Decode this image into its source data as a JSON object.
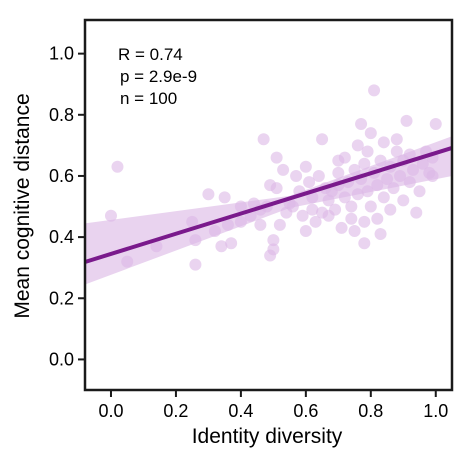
{
  "chart_data": {
    "type": "scatter",
    "xlabel": "Identity diversity",
    "ylabel": "Mean cognitive distance",
    "xlim": [
      -0.08,
      1.05
    ],
    "ylim": [
      -0.1,
      1.11
    ],
    "xticks": [
      0.0,
      0.2,
      0.4,
      0.6,
      0.8,
      1.0
    ],
    "yticks": [
      0.0,
      0.2,
      0.4,
      0.6,
      0.8,
      1.0
    ],
    "xtick_labels": [
      "0.0",
      "0.2",
      "0.4",
      "0.6",
      "0.8",
      "1.0"
    ],
    "ytick_labels": [
      "0.0",
      "0.2",
      "0.4",
      "0.6",
      "0.8",
      "1.0"
    ],
    "grid": false,
    "annotations": [
      "R = 0.74",
      "p = 2.9e-9",
      "n = 100"
    ],
    "colors": {
      "points": "#dcb8e6",
      "line": "#7a1a8c",
      "band": "#e2c4ea"
    },
    "regression": {
      "slope": 0.33,
      "intercept": 0.345,
      "x_range": [
        -0.08,
        1.05
      ],
      "ci_lower": [
        [
          -0.08,
          0.245
        ],
        [
          0.55,
          0.495
        ],
        [
          1.05,
          0.6
        ]
      ],
      "ci_upper": [
        [
          -0.08,
          0.445
        ],
        [
          0.55,
          0.535
        ],
        [
          1.05,
          0.73
        ]
      ]
    },
    "points": [
      {
        "x": 0.0,
        "y": 0.47
      },
      {
        "x": 0.02,
        "y": 0.63
      },
      {
        "x": 0.05,
        "y": 0.32
      },
      {
        "x": 0.14,
        "y": 0.37
      },
      {
        "x": 0.25,
        "y": 0.45
      },
      {
        "x": 0.26,
        "y": 0.39
      },
      {
        "x": 0.26,
        "y": 0.31
      },
      {
        "x": 0.3,
        "y": 0.54
      },
      {
        "x": 0.32,
        "y": 0.42
      },
      {
        "x": 0.34,
        "y": 0.37
      },
      {
        "x": 0.35,
        "y": 0.53
      },
      {
        "x": 0.36,
        "y": 0.44
      },
      {
        "x": 0.37,
        "y": 0.38
      },
      {
        "x": 0.4,
        "y": 0.45
      },
      {
        "x": 0.43,
        "y": 0.47
      },
      {
        "x": 0.46,
        "y": 0.49
      },
      {
        "x": 0.46,
        "y": 0.44
      },
      {
        "x": 0.47,
        "y": 0.72
      },
      {
        "x": 0.48,
        "y": 0.5
      },
      {
        "x": 0.49,
        "y": 0.57
      },
      {
        "x": 0.49,
        "y": 0.34
      },
      {
        "x": 0.5,
        "y": 0.36
      },
      {
        "x": 0.5,
        "y": 0.39
      },
      {
        "x": 0.51,
        "y": 0.66
      },
      {
        "x": 0.51,
        "y": 0.56
      },
      {
        "x": 0.52,
        "y": 0.44
      },
      {
        "x": 0.54,
        "y": 0.48
      },
      {
        "x": 0.55,
        "y": 0.51
      },
      {
        "x": 0.56,
        "y": 0.5
      },
      {
        "x": 0.58,
        "y": 0.55
      },
      {
        "x": 0.59,
        "y": 0.47
      },
      {
        "x": 0.6,
        "y": 0.42
      },
      {
        "x": 0.61,
        "y": 0.58
      },
      {
        "x": 0.62,
        "y": 0.53
      },
      {
        "x": 0.62,
        "y": 0.49
      },
      {
        "x": 0.63,
        "y": 0.45
      },
      {
        "x": 0.64,
        "y": 0.6
      },
      {
        "x": 0.65,
        "y": 0.72
      },
      {
        "x": 0.66,
        "y": 0.56
      },
      {
        "x": 0.67,
        "y": 0.52
      },
      {
        "x": 0.67,
        "y": 0.47
      },
      {
        "x": 0.68,
        "y": 0.55
      },
      {
        "x": 0.69,
        "y": 0.49
      },
      {
        "x": 0.7,
        "y": 0.61
      },
      {
        "x": 0.7,
        "y": 0.57
      },
      {
        "x": 0.71,
        "y": 0.43
      },
      {
        "x": 0.72,
        "y": 0.53
      },
      {
        "x": 0.72,
        "y": 0.66
      },
      {
        "x": 0.73,
        "y": 0.58
      },
      {
        "x": 0.74,
        "y": 0.5
      },
      {
        "x": 0.74,
        "y": 0.46
      },
      {
        "x": 0.75,
        "y": 0.42
      },
      {
        "x": 0.75,
        "y": 0.62
      },
      {
        "x": 0.76,
        "y": 0.54
      },
      {
        "x": 0.76,
        "y": 0.7
      },
      {
        "x": 0.77,
        "y": 0.59
      },
      {
        "x": 0.77,
        "y": 0.77
      },
      {
        "x": 0.78,
        "y": 0.64
      },
      {
        "x": 0.78,
        "y": 0.45
      },
      {
        "x": 0.78,
        "y": 0.38
      },
      {
        "x": 0.79,
        "y": 0.55
      },
      {
        "x": 0.79,
        "y": 0.68
      },
      {
        "x": 0.8,
        "y": 0.5
      },
      {
        "x": 0.8,
        "y": 0.74
      },
      {
        "x": 0.81,
        "y": 0.88
      },
      {
        "x": 0.81,
        "y": 0.61
      },
      {
        "x": 0.82,
        "y": 0.57
      },
      {
        "x": 0.82,
        "y": 0.46
      },
      {
        "x": 0.83,
        "y": 0.65
      },
      {
        "x": 0.83,
        "y": 0.41
      },
      {
        "x": 0.84,
        "y": 0.53
      },
      {
        "x": 0.84,
        "y": 0.71
      },
      {
        "x": 0.85,
        "y": 0.59
      },
      {
        "x": 0.86,
        "y": 0.63
      },
      {
        "x": 0.86,
        "y": 0.49
      },
      {
        "x": 0.87,
        "y": 0.56
      },
      {
        "x": 0.88,
        "y": 0.68
      },
      {
        "x": 0.89,
        "y": 0.6
      },
      {
        "x": 0.9,
        "y": 0.52
      },
      {
        "x": 0.9,
        "y": 0.65
      },
      {
        "x": 0.91,
        "y": 0.78
      },
      {
        "x": 0.92,
        "y": 0.58
      },
      {
        "x": 0.92,
        "y": 0.67
      },
      {
        "x": 0.93,
        "y": 0.62
      },
      {
        "x": 0.94,
        "y": 0.48
      },
      {
        "x": 0.95,
        "y": 0.55
      },
      {
        "x": 0.96,
        "y": 0.64
      },
      {
        "x": 0.97,
        "y": 0.68
      },
      {
        "x": 0.98,
        "y": 0.61
      },
      {
        "x": 0.99,
        "y": 0.6
      },
      {
        "x": 0.99,
        "y": 0.66
      },
      {
        "x": 1.0,
        "y": 0.77
      },
      {
        "x": 0.53,
        "y": 0.62
      },
      {
        "x": 0.57,
        "y": 0.6
      },
      {
        "x": 0.44,
        "y": 0.51
      },
      {
        "x": 0.4,
        "y": 0.5
      },
      {
        "x": 0.88,
        "y": 0.72
      },
      {
        "x": 0.7,
        "y": 0.65
      },
      {
        "x": 0.65,
        "y": 0.48
      },
      {
        "x": 0.6,
        "y": 0.63
      }
    ]
  }
}
